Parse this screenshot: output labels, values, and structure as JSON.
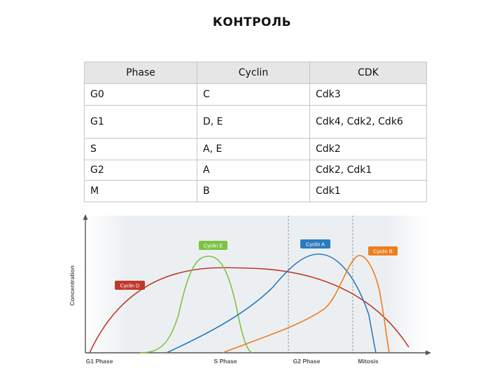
{
  "title": "КОНТРОЛЬ",
  "table": {
    "headers": [
      "Phase",
      "Cyclin",
      "CDK"
    ],
    "rows": [
      [
        "G0",
        "C",
        "Cdk3"
      ],
      [
        "G1",
        "D, E",
        "Cdk4, Cdk2, Cdk6"
      ],
      [
        "S",
        "A, E",
        "Cdk2"
      ],
      [
        "G2",
        "A",
        "Cdk2, Cdk1"
      ],
      [
        "M",
        "B",
        "Cdk1"
      ]
    ]
  },
  "chart_data": {
    "type": "line",
    "ylabel": "Concentration",
    "phases": [
      "G1 Phase",
      "S Phase",
      "G2 Phase",
      "Mitosis"
    ],
    "series": [
      {
        "name": "Cyclin D",
        "color": "#c0392b"
      },
      {
        "name": "Cyclin E",
        "color": "#7dc242"
      },
      {
        "name": "Cyclin A",
        "color": "#2b7bbf"
      },
      {
        "name": "Cyclin B",
        "color": "#ee7d1e"
      }
    ],
    "colors": {
      "axis": "#555555",
      "background": "#e9ecef",
      "phase_line": "#9a9a9a"
    }
  }
}
